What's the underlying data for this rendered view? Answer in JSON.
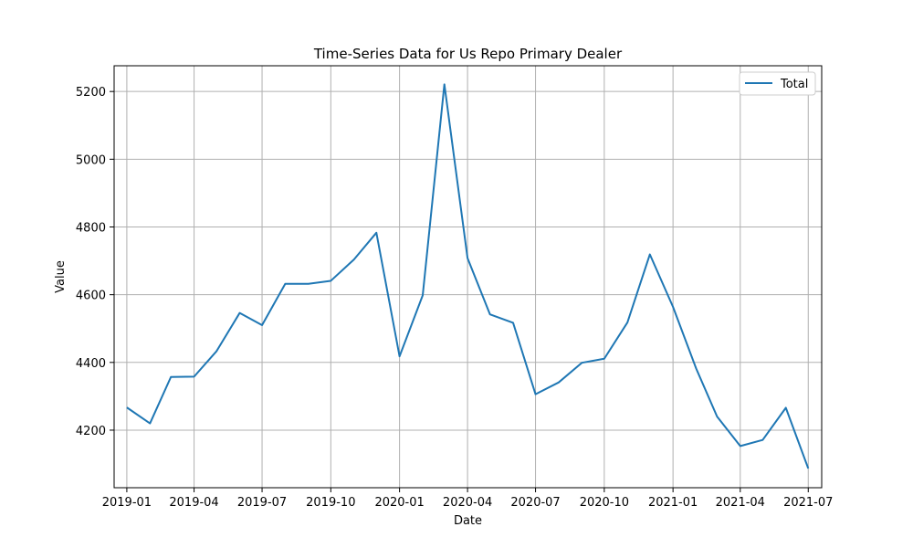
{
  "chart_data": {
    "type": "line",
    "title": "Time-Series Data for Us Repo Primary Dealer",
    "xlabel": "Date",
    "ylabel": "Value",
    "x": [
      "2019-01-01",
      "2019-02-01",
      "2019-03-01",
      "2019-04-01",
      "2019-05-01",
      "2019-06-01",
      "2019-07-01",
      "2019-08-01",
      "2019-09-01",
      "2019-10-01",
      "2019-11-01",
      "2019-12-01",
      "2020-01-01",
      "2020-02-01",
      "2020-03-01",
      "2020-04-01",
      "2020-05-01",
      "2020-06-01",
      "2020-07-01",
      "2020-08-01",
      "2020-09-01",
      "2020-10-01",
      "2020-11-01",
      "2020-12-01",
      "2021-01-01",
      "2021-02-01",
      "2021-03-01",
      "2021-04-01",
      "2021-05-01",
      "2021-06-01",
      "2021-07-01"
    ],
    "series": [
      {
        "name": "Total",
        "color": "#1f77b4",
        "values": [
          4267,
          4220,
          4357,
          4358,
          4433,
          4546,
          4510,
          4632,
          4632,
          4641,
          4704,
          4783,
          4418,
          4598,
          5221,
          4708,
          4542,
          4517,
          4306,
          4341,
          4399,
          4411,
          4518,
          4719,
          4564,
          4382,
          4240,
          4153,
          4171,
          4266,
          4087
        ]
      }
    ],
    "xticks": [
      "2019-01",
      "2019-04",
      "2019-07",
      "2019-10",
      "2020-01",
      "2020-04",
      "2020-07",
      "2020-10",
      "2021-01",
      "2021-04",
      "2021-07"
    ],
    "yticks": [
      4200,
      4400,
      4600,
      4800,
      5000,
      5200
    ],
    "xlim": [
      "2018-12-15",
      "2021-07-19"
    ],
    "ylim": [
      4030,
      5276
    ],
    "grid": true,
    "legend_position": "top-right"
  }
}
